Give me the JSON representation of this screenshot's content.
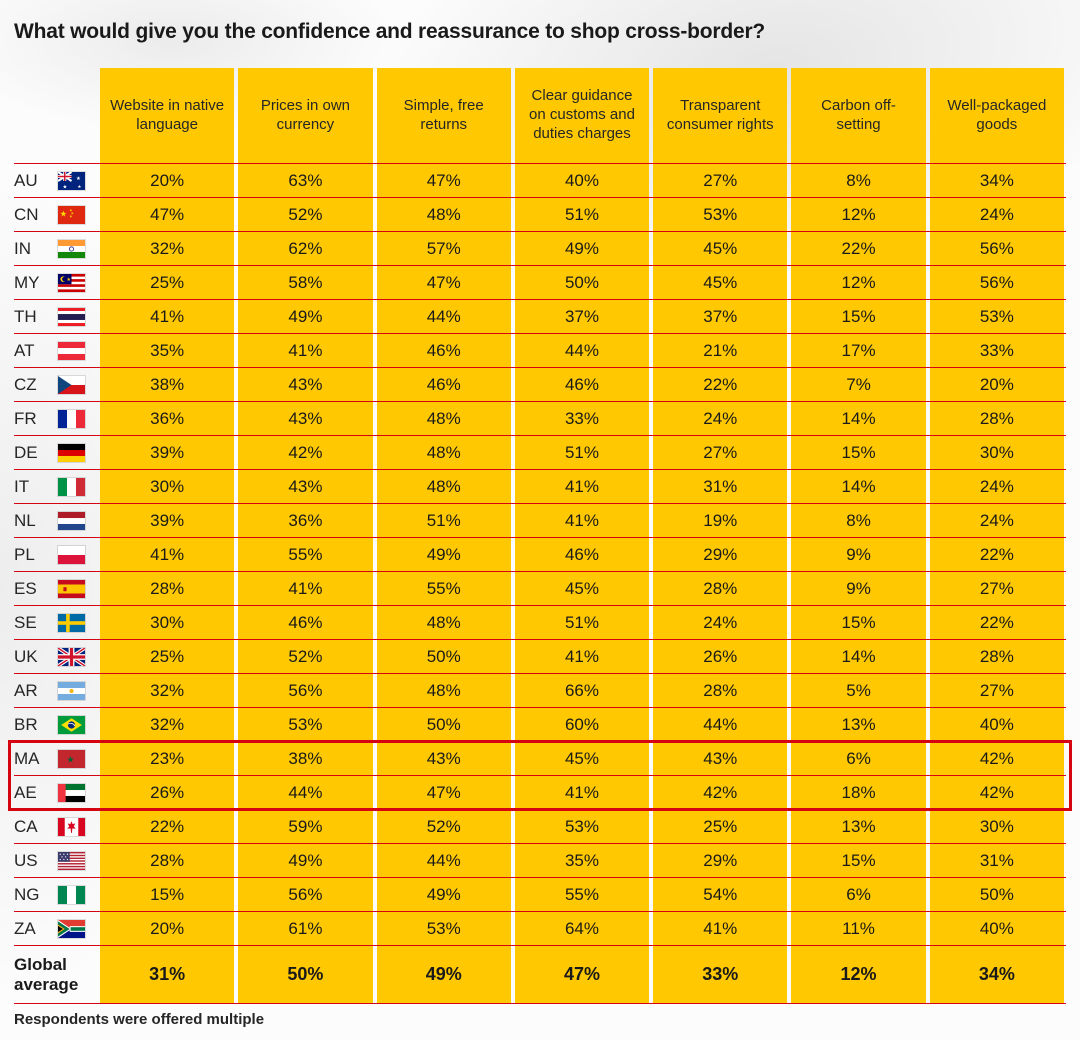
{
  "page": {
    "title": "What would give you the confidence and reassurance to shop cross-border?",
    "footer_note": "Respondents were offered multiple"
  },
  "colors": {
    "cell_yellow": "#FFC800",
    "line_red": "#D40511",
    "text_dark": "#1F1F1F"
  },
  "chart_data": {
    "type": "table",
    "title": "What would give you the confidence and reassurance to shop cross-border?",
    "columns": [
      "Website in native language",
      "Prices in own currency",
      "Simple, free returns",
      "Clear guidance on customs and duties charges",
      "Transparent consumer rights",
      "Carbon off-setting",
      "Well-packaged goods"
    ],
    "rows": [
      {
        "code": "AU",
        "flag": "flag-au-icon",
        "values": [
          "20%",
          "63%",
          "47%",
          "40%",
          "27%",
          "8%",
          "34%"
        ]
      },
      {
        "code": "CN",
        "flag": "flag-cn-icon",
        "values": [
          "47%",
          "52%",
          "48%",
          "51%",
          "53%",
          "12%",
          "24%"
        ]
      },
      {
        "code": "IN",
        "flag": "flag-in-icon",
        "values": [
          "32%",
          "62%",
          "57%",
          "49%",
          "45%",
          "22%",
          "56%"
        ]
      },
      {
        "code": "MY",
        "flag": "flag-my-icon",
        "values": [
          "25%",
          "58%",
          "47%",
          "50%",
          "45%",
          "12%",
          "56%"
        ]
      },
      {
        "code": "TH",
        "flag": "flag-th-icon",
        "values": [
          "41%",
          "49%",
          "44%",
          "37%",
          "37%",
          "15%",
          "53%"
        ]
      },
      {
        "code": "AT",
        "flag": "flag-at-icon",
        "values": [
          "35%",
          "41%",
          "46%",
          "44%",
          "21%",
          "17%",
          "33%"
        ]
      },
      {
        "code": "CZ",
        "flag": "flag-cz-icon",
        "values": [
          "38%",
          "43%",
          "46%",
          "46%",
          "22%",
          "7%",
          "20%"
        ]
      },
      {
        "code": "FR",
        "flag": "flag-fr-icon",
        "values": [
          "36%",
          "43%",
          "48%",
          "33%",
          "24%",
          "14%",
          "28%"
        ]
      },
      {
        "code": "DE",
        "flag": "flag-de-icon",
        "values": [
          "39%",
          "42%",
          "48%",
          "51%",
          "27%",
          "15%",
          "30%"
        ]
      },
      {
        "code": "IT",
        "flag": "flag-it-icon",
        "values": [
          "30%",
          "43%",
          "48%",
          "41%",
          "31%",
          "14%",
          "24%"
        ]
      },
      {
        "code": "NL",
        "flag": "flag-nl-icon",
        "values": [
          "39%",
          "36%",
          "51%",
          "41%",
          "19%",
          "8%",
          "24%"
        ]
      },
      {
        "code": "PL",
        "flag": "flag-pl-icon",
        "values": [
          "41%",
          "55%",
          "49%",
          "46%",
          "29%",
          "9%",
          "22%"
        ]
      },
      {
        "code": "ES",
        "flag": "flag-es-icon",
        "values": [
          "28%",
          "41%",
          "55%",
          "45%",
          "28%",
          "9%",
          "27%"
        ]
      },
      {
        "code": "SE",
        "flag": "flag-se-icon",
        "values": [
          "30%",
          "46%",
          "48%",
          "51%",
          "24%",
          "15%",
          "22%"
        ]
      },
      {
        "code": "UK",
        "flag": "flag-uk-icon",
        "values": [
          "25%",
          "52%",
          "50%",
          "41%",
          "26%",
          "14%",
          "28%"
        ]
      },
      {
        "code": "AR",
        "flag": "flag-ar-icon",
        "values": [
          "32%",
          "56%",
          "48%",
          "66%",
          "28%",
          "5%",
          "27%"
        ]
      },
      {
        "code": "BR",
        "flag": "flag-br-icon",
        "values": [
          "32%",
          "53%",
          "50%",
          "60%",
          "44%",
          "13%",
          "40%"
        ]
      },
      {
        "code": "MA",
        "flag": "flag-ma-icon",
        "values": [
          "23%",
          "38%",
          "43%",
          "45%",
          "43%",
          "6%",
          "42%"
        ]
      },
      {
        "code": "AE",
        "flag": "flag-ae-icon",
        "values": [
          "26%",
          "44%",
          "47%",
          "41%",
          "42%",
          "18%",
          "42%"
        ]
      },
      {
        "code": "CA",
        "flag": "flag-ca-icon",
        "values": [
          "22%",
          "59%",
          "52%",
          "53%",
          "25%",
          "13%",
          "30%"
        ]
      },
      {
        "code": "US",
        "flag": "flag-us-icon",
        "values": [
          "28%",
          "49%",
          "44%",
          "35%",
          "29%",
          "15%",
          "31%"
        ]
      },
      {
        "code": "NG",
        "flag": "flag-ng-icon",
        "values": [
          "15%",
          "56%",
          "49%",
          "55%",
          "54%",
          "6%",
          "50%"
        ]
      },
      {
        "code": "ZA",
        "flag": "flag-za-icon",
        "values": [
          "20%",
          "61%",
          "53%",
          "64%",
          "41%",
          "11%",
          "40%"
        ]
      }
    ],
    "global_row": {
      "label": "Global average",
      "values": [
        "31%",
        "50%",
        "49%",
        "47%",
        "33%",
        "12%",
        "34%"
      ]
    },
    "highlighted_codes": [
      "MA",
      "AE"
    ]
  }
}
